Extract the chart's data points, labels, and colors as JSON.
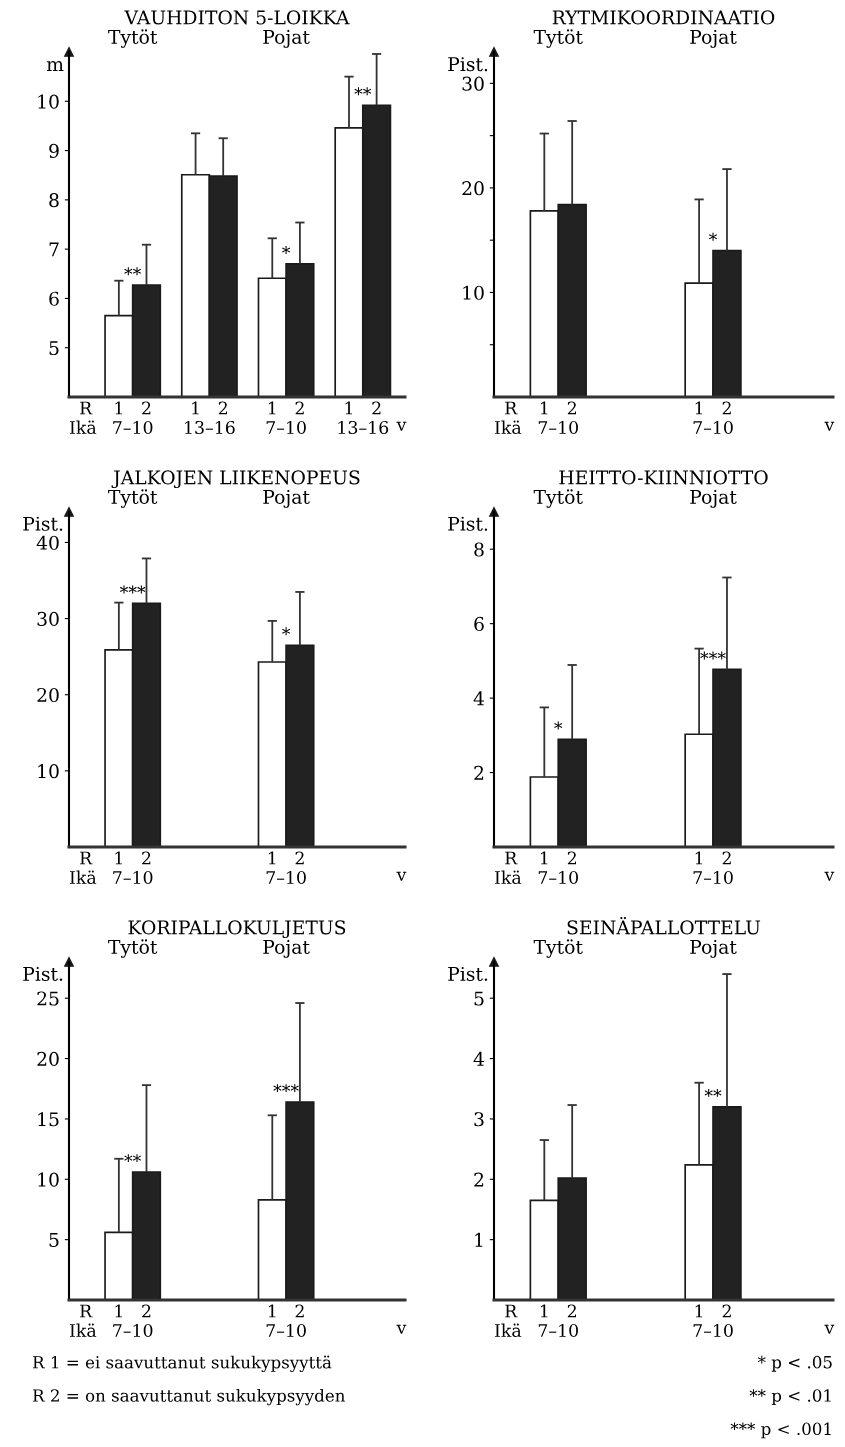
{
  "chart_data": [
    {
      "type": "bar",
      "title": "VAUHDITON 5-LOIKKA",
      "ylabel": "m",
      "xlabel": "v",
      "categories": [
        "7–10",
        "13–16",
        "7–10",
        "13–16"
      ],
      "ylim": [
        4,
        11
      ],
      "yticks": [
        5,
        6,
        7,
        8,
        9,
        10
      ],
      "grid": false,
      "legend": false,
      "annotations": [
        "R",
        "Ikä",
        "Tytöt",
        "Pojat"
      ],
      "series": [
        {
          "name": "1",
          "color": "#ffffff",
          "values": [
            5.65,
            8.51,
            6.41,
            9.46
          ],
          "errors": [
            [
              5.65,
              6.36
            ],
            [
              8.51,
              9.35
            ],
            [
              6.41,
              7.22
            ],
            [
              9.46,
              10.5
            ]
          ]
        },
        {
          "name": "2",
          "color": "#222222",
          "values": [
            6.27,
            8.48,
            6.7,
            9.92
          ],
          "errors": [
            [
              6.27,
              7.09
            ],
            [
              8.48,
              9.25
            ],
            [
              6.7,
              7.54
            ],
            [
              9.92,
              10.96
            ]
          ],
          "value_labels": [
            "**",
            null,
            "*",
            "**"
          ]
        }
      ]
    },
    {
      "type": "bar",
      "title": "RYTMIKOORDINAATIO",
      "ylabel": "Pist.",
      "xlabel": "v",
      "categories": [
        "7–10",
        null,
        "7–10",
        null
      ],
      "ylim": [
        0,
        33
      ],
      "yticks": [
        {
          "value": 5,
          "label": null
        },
        10,
        {
          "value": 15,
          "label": null
        },
        20,
        {
          "value": 25,
          "label": null
        },
        30
      ],
      "grid": false,
      "legend": false,
      "annotations": [
        "R",
        "Ikä",
        "Tytöt",
        "Pojat"
      ],
      "series": [
        {
          "name": "1",
          "color": "#ffffff",
          "values": [
            17.8,
            null,
            10.9,
            null
          ],
          "errors": [
            [
              17.8,
              25.2
            ],
            null,
            [
              10.9,
              18.9
            ],
            null
          ]
        },
        {
          "name": "2",
          "color": "#222222",
          "values": [
            18.4,
            null,
            14.0,
            null
          ],
          "errors": [
            [
              18.4,
              26.4
            ],
            null,
            [
              14.0,
              21.8
            ],
            null
          ],
          "value_labels": [
            null,
            null,
            "*",
            null
          ]
        }
      ]
    },
    {
      "type": "bar",
      "title": "JALKOJEN LIIKENOPEUS",
      "ylabel": "Pist.",
      "xlabel": "v",
      "categories": [
        "7–10",
        null,
        "7–10",
        null
      ],
      "ylim": [
        0,
        44
      ],
      "yticks": [
        10,
        20,
        30,
        40
      ],
      "grid": false,
      "legend": false,
      "annotations": [
        "R",
        "Ikä",
        "Tytöt",
        "Pojat"
      ],
      "series": [
        {
          "name": "1",
          "color": "#ffffff",
          "values": [
            25.9,
            null,
            24.3,
            null
          ],
          "errors": [
            [
              25.9,
              32.1
            ],
            null,
            [
              24.3,
              29.7
            ],
            null
          ]
        },
        {
          "name": "2",
          "color": "#222222",
          "values": [
            32.0,
            null,
            26.5,
            null
          ],
          "errors": [
            [
              32.0,
              37.9
            ],
            null,
            [
              26.5,
              33.5
            ],
            null
          ],
          "value_labels": [
            "***",
            null,
            "*",
            null
          ]
        }
      ]
    },
    {
      "type": "bar",
      "title": "HEITTO-KIINNIOTTO",
      "ylabel": "Pist.",
      "xlabel": "v",
      "categories": [
        "7–10",
        null,
        "7–10",
        null
      ],
      "ylim": [
        0,
        9
      ],
      "yticks": [
        2,
        4,
        6,
        8
      ],
      "grid": false,
      "legend": false,
      "annotations": [
        "R",
        "Ikä",
        "Tytöt",
        "Pojat"
      ],
      "series": [
        {
          "name": "1",
          "color": "#ffffff",
          "values": [
            1.88,
            null,
            3.03,
            null
          ],
          "errors": [
            [
              1.88,
              3.75
            ],
            null,
            [
              3.03,
              5.33
            ],
            null
          ]
        },
        {
          "name": "2",
          "color": "#222222",
          "values": [
            2.89,
            null,
            4.77,
            null
          ],
          "errors": [
            [
              2.89,
              4.89
            ],
            null,
            [
              4.77,
              7.24
            ],
            null
          ],
          "value_labels": [
            "*",
            null,
            "***",
            null
          ]
        }
      ]
    },
    {
      "type": "bar",
      "title": "KORIPALLOKULJETUS",
      "ylabel": "Pist.",
      "xlabel": "v",
      "categories": [
        "7–10",
        null,
        "7–10",
        null
      ],
      "ylim": [
        0,
        28
      ],
      "yticks": [
        5,
        10,
        15,
        20,
        25
      ],
      "grid": false,
      "legend": false,
      "annotations": [
        "R",
        "Ikä",
        "Tytöt",
        "Pojat",
        "R 1 = ei saavuttanut sukukypsyyttä",
        "R 2 = on saavuttanut sukukypsyyden"
      ],
      "series": [
        {
          "name": "1",
          "color": "#ffffff",
          "values": [
            5.6,
            null,
            8.3,
            null
          ],
          "errors": [
            [
              5.6,
              11.7
            ],
            null,
            [
              8.3,
              15.3
            ],
            null
          ]
        },
        {
          "name": "2",
          "color": "#222222",
          "values": [
            10.6,
            null,
            16.4,
            null
          ],
          "errors": [
            [
              10.6,
              17.8
            ],
            null,
            [
              16.4,
              24.6
            ],
            null
          ],
          "value_labels": [
            "**",
            null,
            "***",
            null
          ]
        }
      ]
    },
    {
      "type": "bar",
      "title": "SEINÄPALLOTTELU",
      "ylabel": "Pist.",
      "xlabel": "v",
      "categories": [
        "7–10",
        null,
        "7–10",
        null
      ],
      "ylim": [
        0,
        5.6
      ],
      "yticks": [
        1,
        2,
        3,
        4,
        5
      ],
      "grid": false,
      "legend": false,
      "annotations": [
        "R",
        "Ikä",
        "Tytöt",
        "Pojat",
        "* p < .05",
        "** p < .01",
        "*** p < .001"
      ],
      "series": [
        {
          "name": "1",
          "color": "#ffffff",
          "values": [
            1.65,
            null,
            2.24,
            null
          ],
          "errors": [
            [
              1.65,
              2.65
            ],
            null,
            [
              2.24,
              3.6
            ],
            null
          ]
        },
        {
          "name": "2",
          "color": "#222222",
          "values": [
            2.02,
            null,
            3.2,
            null
          ],
          "errors": [
            [
              2.02,
              3.23
            ],
            null,
            [
              3.2,
              5.4
            ],
            null
          ],
          "value_labels": [
            null,
            null,
            "**",
            null
          ]
        }
      ]
    }
  ]
}
